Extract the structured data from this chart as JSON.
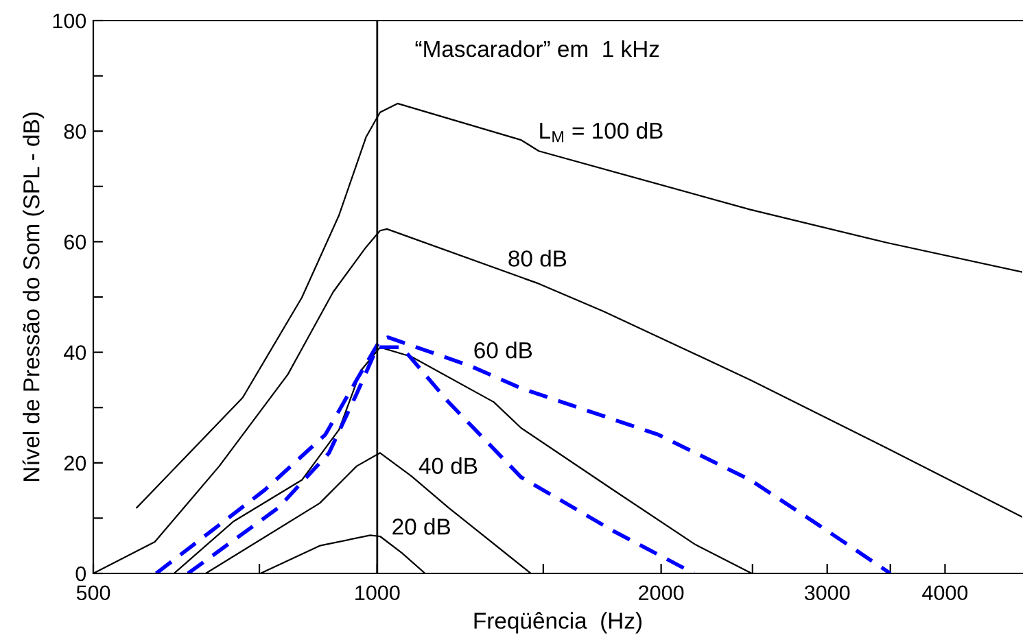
{
  "chart_data": {
    "type": "line",
    "xlabel": "Freqüência  (Hz)",
    "ylabel": "Nível de Pressão do Som (SPL - dB)",
    "log": "x",
    "xlim": [
      500,
      4830
    ],
    "ylim": [
      0,
      100
    ],
    "xticks": [
      500,
      {
        "value": 750,
        "label": null
      },
      1000,
      {
        "value": 1500,
        "label": null
      },
      2000,
      {
        "value": 2500,
        "label": null
      },
      3000,
      {
        "value": 3500,
        "label": null
      },
      4000
    ],
    "yticks": [
      0,
      {
        "value": 10,
        "label": null
      },
      20,
      {
        "value": 30,
        "label": null
      },
      40,
      {
        "value": 50,
        "label": null
      },
      60,
      {
        "value": 70,
        "label": null
      },
      80,
      {
        "value": 90,
        "label": null
      },
      100
    ],
    "grid": false,
    "legend": false,
    "marker": "none",
    "ref_lines": [
      {
        "axis": "x",
        "value": 1000,
        "color": "#000000",
        "line_style": "solid"
      }
    ],
    "series": [
      {
        "name": "L$_{M}$ = 100 dB",
        "color": "#000000",
        "line_style": "solid",
        "x": [
          556,
          720,
          832,
          911,
          973,
          1007,
          1051,
          1421,
          1484,
          2487,
          3475,
          4830
        ],
        "values": [
          11.9,
          31.8,
          49.9,
          64.8,
          78.9,
          83.4,
          85.0,
          78.4,
          76.4,
          65.8,
          59.8,
          54.5
        ]
      },
      {
        "name": "80 dB",
        "color": "#000000",
        "line_style": "solid",
        "x": [
          500,
          581,
          680,
          804,
          898,
          973,
          1007,
          1024,
          1484,
          1738,
          2487,
          3475,
          4830
        ],
        "values": [
          0,
          5.7,
          19.4,
          36,
          50.9,
          59,
          62,
          62.3,
          52.4,
          47.4,
          35,
          22.6,
          10.2
        ]
      },
      {
        "name": "60 dB",
        "color": "#000000",
        "line_style": "solid",
        "x": [
          609,
          704,
          832,
          911,
          961,
          1007,
          1087,
          1329,
          1421,
          1779,
          2175,
          2495
        ],
        "values": [
          0,
          9.4,
          16.9,
          26,
          36.7,
          40.9,
          39.2,
          31,
          26.3,
          15.1,
          5.2,
          0
        ]
      },
      {
        "name": "40 dB",
        "color": "#000000",
        "line_style": "solid",
        "x": [
          658,
          869,
          951,
          1007,
          1087,
          1190,
          1455
        ],
        "values": [
          0,
          12.7,
          19.4,
          21.8,
          17.6,
          11.9,
          0
        ]
      },
      {
        "name": "20 dB",
        "color": "#000000",
        "line_style": "solid",
        "x": [
          752,
          869,
          983,
          1007,
          1062,
          1124
        ],
        "values": [
          0,
          5,
          6.9,
          6.7,
          3.7,
          0
        ]
      },
      {
        "color": "#0000ff",
        "line_style": "dashed",
        "x": [
          583,
          760,
          881,
          951,
          1007,
          1027,
          1256,
          1421,
          1986,
          2487,
          2941,
          3500
        ],
        "values": [
          0,
          15.1,
          25.1,
          35,
          42.2,
          42.7,
          37.5,
          33.5,
          25.1,
          16.9,
          8.7,
          0
        ]
      },
      {
        "color": "#0000ff",
        "line_style": "dashed",
        "x": [
          630,
          786,
          889,
          951,
          1000,
          1062,
          1190,
          1421,
          1779,
          2167
        ],
        "values": [
          0,
          11.9,
          21.8,
          32.5,
          40.9,
          40.9,
          31,
          17.4,
          7.7,
          0
        ]
      }
    ],
    "annotations": [
      "“Mascarador” em  1 kHz"
    ]
  }
}
